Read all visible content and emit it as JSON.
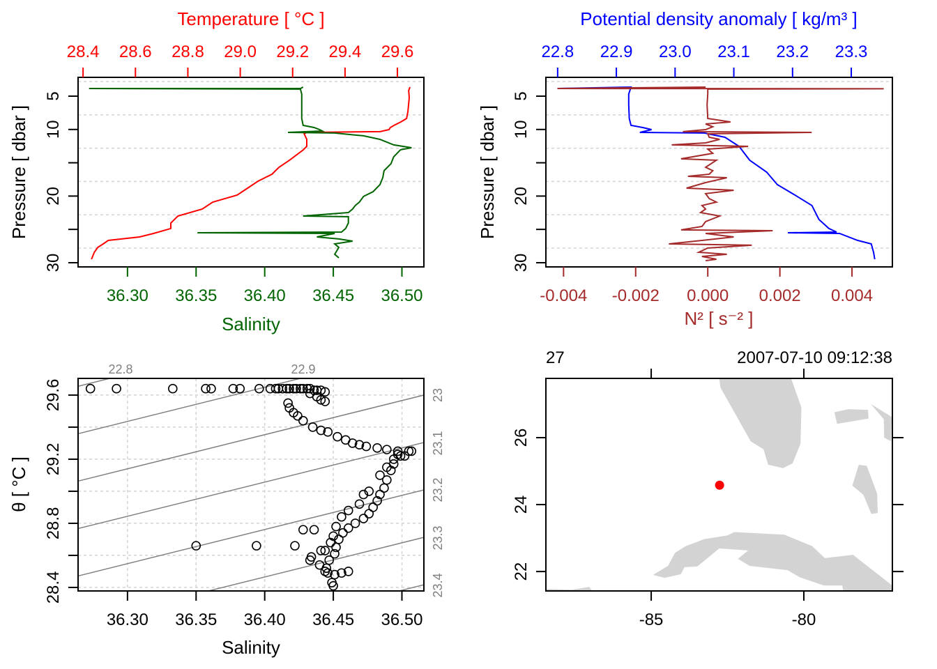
{
  "colors": {
    "temperature": "#FF0000",
    "salinity": "#006400",
    "density": "#0000FF",
    "n2": "#A52A2A",
    "isopycnal": "#808080",
    "grid": "#D3D3D3",
    "land": "#D3D3D3",
    "station": "#FF0000"
  },
  "chart_data": [
    {
      "type": "line",
      "panel": "profile-temperature-salinity",
      "grid": true,
      "y_axis": {
        "label": "Pressure [ dbar ]",
        "range": [
          30.63,
          2.18
        ],
        "reversed": true,
        "ticks": [
          5,
          10,
          15,
          20,
          25,
          30
        ],
        "tick_labels": [
          "5",
          "10",
          "",
          "20",
          "",
          "30"
        ]
      },
      "top_axis": {
        "label": "Temperature [ °C ]",
        "range": [
          28.381,
          29.701
        ],
        "ticks": [
          28.4,
          28.6,
          28.8,
          29.0,
          29.2,
          29.4,
          29.6
        ],
        "tick_labels": [
          "28.4",
          "28.6",
          "28.8",
          "29.0",
          "29.2",
          "29.4",
          "29.6"
        ]
      },
      "bottom_axis": {
        "label": "Salinity",
        "range": [
          36.264,
          36.516
        ],
        "ticks": [
          36.3,
          36.35,
          36.4,
          36.45,
          36.5
        ],
        "tick_labels": [
          "36.30",
          "36.35",
          "36.40",
          "36.45",
          "36.50"
        ]
      },
      "temperature": {
        "pressure": [
          3.64,
          4.16,
          5.21,
          7.3,
          8.35,
          8.87,
          9.39,
          9.71,
          10.02,
          10.33,
          10.44,
          10.65,
          11.49,
          12.53,
          13.05,
          14.62,
          15.67,
          16.72,
          17.76,
          18.81,
          19.85,
          20.9,
          21.95,
          22.99,
          24.04,
          24.87,
          25.61,
          26.13,
          26.66,
          27.18,
          27.7,
          28.43,
          29.48
        ],
        "value": [
          29.648,
          29.643,
          29.645,
          29.64,
          29.635,
          29.613,
          29.587,
          29.573,
          29.568,
          29.534,
          29.254,
          29.244,
          29.254,
          29.254,
          29.241,
          29.188,
          29.148,
          29.121,
          29.068,
          29.028,
          28.988,
          28.895,
          28.855,
          28.762,
          28.735,
          28.735,
          28.669,
          28.616,
          28.496,
          28.477,
          28.456,
          28.443,
          28.432
        ]
      },
      "salinity": {
        "pressure": [
          3.64,
          3.85,
          3.85,
          3.95,
          4.69,
          6.26,
          8.35,
          9.39,
          9.71,
          10.02,
          10.23,
          10.44,
          10.54,
          10.96,
          11.49,
          12.32,
          12.74,
          13.05,
          14.1,
          15.15,
          16.19,
          17.24,
          18.28,
          19.33,
          20.06,
          20.9,
          21.42,
          21.95,
          22.47,
          22.99,
          23.1,
          24.04,
          24.87,
          25.4,
          25.5,
          25.61,
          26.13,
          26.44,
          26.76,
          27.18,
          27.7,
          28.74,
          29.27
        ],
        "value": [
          36.428,
          36.426,
          36.272,
          36.426,
          36.427,
          36.427,
          36.427,
          36.428,
          36.436,
          36.44,
          36.442,
          36.417,
          36.451,
          36.472,
          36.484,
          36.494,
          36.507,
          36.499,
          36.494,
          36.492,
          36.487,
          36.486,
          36.484,
          36.479,
          36.472,
          36.469,
          36.466,
          36.464,
          36.461,
          36.428,
          36.461,
          36.461,
          36.459,
          36.456,
          36.351,
          36.451,
          36.438,
          36.454,
          36.464,
          36.451,
          36.454,
          36.451,
          36.454
        ]
      }
    },
    {
      "type": "line",
      "panel": "profile-density-n2",
      "grid": true,
      "y_axis": {
        "label": "Pressure [ dbar ]",
        "range": [
          30.63,
          2.18
        ],
        "reversed": true,
        "ticks": [
          5,
          10,
          15,
          20,
          25,
          30
        ],
        "tick_labels": [
          "5",
          "10",
          "",
          "20",
          "",
          "30"
        ]
      },
      "top_axis": {
        "label": "Potential density anomaly [ kg/m³ ]",
        "range": [
          22.78,
          23.37
        ],
        "ticks": [
          22.8,
          22.9,
          23.0,
          23.1,
          23.2,
          23.3
        ],
        "tick_labels": [
          "22.8",
          "22.9",
          "23.0",
          "23.1",
          "23.2",
          "23.3"
        ]
      },
      "bottom_axis": {
        "label": "N² [ s⁻² ]",
        "range": [
          -0.00449,
          0.00512
        ],
        "ticks": [
          -0.004,
          -0.002,
          0.0,
          0.002,
          0.004
        ],
        "tick_labels": [
          "-0.004",
          "-0.002",
          "0.000",
          "0.002",
          "0.004"
        ]
      },
      "density": {
        "pressure": [
          3.85,
          3.85,
          3.64,
          4.69,
          6.26,
          8.35,
          9.39,
          9.71,
          10.02,
          10.44,
          10.54,
          11.17,
          12.53,
          14.62,
          16.4,
          18.28,
          19.85,
          21.42,
          23.52,
          24.87,
          25.4,
          25.5,
          25.61,
          26.66,
          27.18,
          28.43,
          29.48
        ],
        "value": [
          22.925,
          22.8,
          22.925,
          22.921,
          22.921,
          22.922,
          22.925,
          22.945,
          22.96,
          22.94,
          23.05,
          23.085,
          23.109,
          23.127,
          23.156,
          23.174,
          23.204,
          23.233,
          23.245,
          23.262,
          23.275,
          23.192,
          23.28,
          23.311,
          23.334,
          23.338,
          23.34
        ]
      },
      "n2": {
        "pressure": [
          3.64,
          3.85,
          3.9,
          3.95,
          4.69,
          6.26,
          8.35,
          8.87,
          9.18,
          9.6,
          10.02,
          10.33,
          10.44,
          10.65,
          11.17,
          11.49,
          12.01,
          12.32,
          12.53,
          12.95,
          13.58,
          14.41,
          14.62,
          15.67,
          16.19,
          16.72,
          17.03,
          17.24,
          17.97,
          18.81,
          19.12,
          19.64,
          20.38,
          20.9,
          21.42,
          21.95,
          22.47,
          22.99,
          23.83,
          24.56,
          25.08,
          25.19,
          25.61,
          26.13,
          26.66,
          27.18,
          27.38,
          27.8,
          28.43,
          28.74,
          29.06,
          29.48,
          29.69
        ],
        "value": [
          -6e-05,
          -0.00417,
          0.00488,
          0,
          0,
          -2e-05,
          0,
          0.00063,
          -6e-05,
          0.00014,
          -6e-05,
          -0.00069,
          0.00288,
          0,
          4e-05,
          0.00033,
          -6e-05,
          -0.001,
          0.00112,
          0,
          0.00014,
          -0.00074,
          0.00024,
          -6e-05,
          0.00014,
          4e-05,
          -0.00055,
          0.00053,
          -6e-05,
          -0.00059,
          0.00072,
          -6e-05,
          4e-05,
          0.00024,
          -0.00016,
          -6e-05,
          -0.0002,
          0.00033,
          -6e-05,
          -0.00016,
          -0.00074,
          0.0018,
          -6e-05,
          0.00072,
          -0.00016,
          -0.00108,
          0.00122,
          0,
          -0.00025,
          0.00053,
          -0.00016,
          0.00024,
          -6e-05
        ]
      }
    },
    {
      "type": "scatter",
      "panel": "ts-diagram",
      "grid": true,
      "x_axis": {
        "label": "Salinity",
        "range": [
          36.264,
          36.516
        ],
        "ticks": [
          36.3,
          36.35,
          36.4,
          36.45,
          36.5
        ],
        "tick_labels": [
          "36.30",
          "36.35",
          "36.40",
          "36.45",
          "36.50"
        ]
      },
      "y_axis": {
        "label": "θ [ °C ]",
        "range": [
          28.378,
          29.704
        ],
        "ticks": [
          28.4,
          28.6,
          28.8,
          29.0,
          29.2,
          29.4,
          29.6
        ],
        "tick_labels": [
          "28.4",
          "",
          "28.8",
          "",
          "29.2",
          "",
          "29.6"
        ]
      },
      "isopycnals": {
        "levels": [
          22.8,
          22.9,
          23.0,
          23.1,
          23.2,
          23.3,
          23.4
        ],
        "top_labels": [
          "22.8",
          "22.9"
        ],
        "right_labels": [
          "23",
          "23.1",
          "23.2",
          "23.3",
          "23.4"
        ]
      },
      "salinity": [
        36.273,
        36.292,
        36.333,
        36.357,
        36.361,
        36.377,
        36.382,
        36.396,
        36.404,
        36.408,
        36.41,
        36.413,
        36.416,
        36.418,
        36.421,
        36.423,
        36.426,
        36.428,
        36.431,
        36.433,
        36.436,
        36.438,
        36.441,
        36.444,
        36.433,
        36.438,
        36.441,
        36.444,
        36.417,
        36.418,
        36.421,
        36.424,
        36.428,
        36.435,
        36.441,
        36.446,
        36.453,
        36.459,
        36.464,
        36.469,
        36.474,
        36.482,
        36.489,
        36.497,
        36.505,
        36.507,
        36.499,
        36.494,
        36.492,
        36.489,
        36.487,
        36.484,
        36.482,
        36.479,
        36.476,
        36.472,
        36.466,
        36.461,
        36.457,
        36.454,
        36.452,
        36.451,
        36.447,
        36.445,
        36.444,
        36.446,
        36.451,
        36.456,
        36.461,
        36.449,
        36.45,
        36.35,
        36.394,
        36.422,
        36.428,
        36.436,
        36.472,
        36.444,
        36.434,
        36.433,
        36.44,
        36.441,
        36.497,
        36.502,
        36.494,
        36.489,
        36.484,
        36.476,
        36.469,
        36.461,
        36.456,
        36.452,
        36.45,
        36.448
      ],
      "theta": [
        29.64,
        29.64,
        29.64,
        29.64,
        29.64,
        29.64,
        29.64,
        29.64,
        29.64,
        29.64,
        29.64,
        29.64,
        29.64,
        29.64,
        29.64,
        29.64,
        29.64,
        29.64,
        29.64,
        29.64,
        29.63,
        29.63,
        29.63,
        29.62,
        29.61,
        29.59,
        29.57,
        29.56,
        29.55,
        29.52,
        29.49,
        29.47,
        29.44,
        29.4,
        29.38,
        29.37,
        29.34,
        29.32,
        29.3,
        29.29,
        29.28,
        29.27,
        29.26,
        29.25,
        29.25,
        29.25,
        29.22,
        29.17,
        29.13,
        29.07,
        29.02,
        28.98,
        28.94,
        28.9,
        28.86,
        28.83,
        28.8,
        28.77,
        28.74,
        28.7,
        28.65,
        28.61,
        28.57,
        28.52,
        28.5,
        28.49,
        28.48,
        28.49,
        28.5,
        28.43,
        28.41,
        28.66,
        28.66,
        28.66,
        28.76,
        28.76,
        28.98,
        28.63,
        28.59,
        28.57,
        28.54,
        28.63,
        29.23,
        29.22,
        29.2,
        29.15,
        29.1,
        29.0,
        28.92,
        28.88,
        28.84,
        28.78,
        28.72,
        28.68
      ]
    },
    {
      "type": "map",
      "panel": "station-map",
      "header_left": "27",
      "header_right": "2007-07-10 09:12:38",
      "lon_range": [
        -88.45,
        -77.1
      ],
      "lat_range": [
        21.42,
        27.77
      ],
      "lon_ticks": [
        -85,
        -80
      ],
      "lon_tick_labels": [
        "-85",
        "-80"
      ],
      "lat_ticks": [
        22,
        24,
        26
      ],
      "lat_tick_labels": [
        "22",
        "24",
        "26"
      ],
      "station": {
        "lon": -82.76,
        "lat": 24.58
      },
      "coastline": [
        [
          [
            -82.77,
            28.2
          ],
          [
            -80.41,
            28.2
          ],
          [
            -80.41,
            27.75
          ],
          [
            -80.08,
            26.9
          ],
          [
            -80.11,
            25.82
          ],
          [
            -80.37,
            25.23
          ],
          [
            -80.68,
            25.09
          ],
          [
            -81.17,
            25.19
          ],
          [
            -81.32,
            25.65
          ],
          [
            -81.74,
            25.89
          ],
          [
            -82.73,
            27.49
          ],
          [
            -82.77,
            27.75
          ]
        ],
        [
          [
            -84.94,
            21.9
          ],
          [
            -84.45,
            22.17
          ],
          [
            -84.22,
            22.56
          ],
          [
            -83.87,
            22.76
          ],
          [
            -83.26,
            22.97
          ],
          [
            -82.5,
            23.08
          ],
          [
            -82.28,
            23.18
          ],
          [
            -80.64,
            23.1
          ],
          [
            -79.73,
            22.76
          ],
          [
            -79.31,
            22.4
          ],
          [
            -78.39,
            22.5
          ],
          [
            -77.1,
            21.58
          ],
          [
            -77.1,
            21.3
          ],
          [
            -78.7,
            21.3
          ],
          [
            -78.74,
            21.58
          ],
          [
            -79.34,
            21.58
          ],
          [
            -80.14,
            21.83
          ],
          [
            -80.53,
            22.04
          ],
          [
            -81.78,
            22.17
          ],
          [
            -82.16,
            22.38
          ],
          [
            -81.82,
            22.63
          ],
          [
            -82.77,
            22.69
          ],
          [
            -83.49,
            22.15
          ],
          [
            -83.91,
            22.13
          ],
          [
            -84.03,
            21.92
          ],
          [
            -84.56,
            21.81
          ]
        ],
        [
          [
            -79.0,
            26.76
          ],
          [
            -78.55,
            26.85
          ],
          [
            -77.9,
            26.83
          ],
          [
            -77.88,
            26.57
          ],
          [
            -78.91,
            26.41
          ]
        ],
        [
          [
            -78.2,
            25.19
          ],
          [
            -77.94,
            25.16
          ],
          [
            -77.6,
            24.33
          ],
          [
            -77.58,
            23.75
          ],
          [
            -77.79,
            23.72
          ],
          [
            -78.05,
            24.29
          ],
          [
            -78.41,
            24.57
          ]
        ],
        [
          [
            -77.8,
            27.0
          ],
          [
            -77.12,
            26.62
          ],
          [
            -77.14,
            25.89
          ],
          [
            -77.37,
            26.0
          ],
          [
            -77.38,
            26.55
          ]
        ],
        [
          [
            -88.44,
            21.48
          ],
          [
            -87.6,
            21.46
          ],
          [
            -87.03,
            21.54
          ],
          [
            -86.92,
            21.41
          ],
          [
            -88.5,
            21.3
          ]
        ]
      ]
    }
  ]
}
